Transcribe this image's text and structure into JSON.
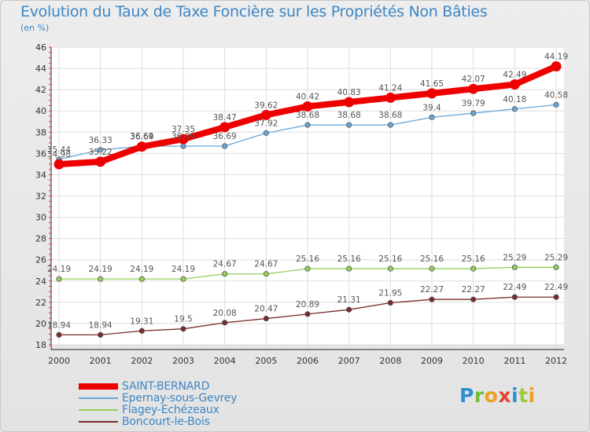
{
  "header": {
    "title": "Evolution du Taux de Taxe Foncière sur les Propriétés Non Bâties",
    "subtitle": "(en %)"
  },
  "logo": {
    "text": "Proxiti"
  },
  "chart_data": {
    "type": "line",
    "x": [
      "2000",
      "2001",
      "2002",
      "2003",
      "2004",
      "2005",
      "2006",
      "2007",
      "2008",
      "2009",
      "2010",
      "2011",
      "2012"
    ],
    "yticks": [
      18,
      20,
      22,
      24,
      26,
      28,
      30,
      32,
      34,
      36,
      38,
      40,
      42,
      44,
      46
    ],
    "ylim": [
      18,
      46
    ],
    "grid": true,
    "legend_position": "bottom-left",
    "series": [
      {
        "name": "SAINT-BERNARD",
        "color": "#ee0000",
        "width": 8,
        "values": [
          34.98,
          35.22,
          36.64,
          37.35,
          38.47,
          39.62,
          40.42,
          40.83,
          41.24,
          41.65,
          42.07,
          42.49,
          44.19
        ],
        "labels": [
          "34.98",
          "35.22",
          "36.64",
          "37.35",
          "38.47",
          "39.62",
          "40.42",
          "40.83",
          "41.24",
          "41.65",
          "42.07",
          "42.49",
          "44.19"
        ]
      },
      {
        "name": "Epernay-sous-Gevrey",
        "color": "#6aa6d6",
        "width": 1.3,
        "values": [
          35.44,
          36.33,
          36.69,
          36.69,
          36.69,
          37.92,
          38.68,
          38.68,
          38.68,
          39.4,
          39.79,
          40.18,
          40.58
        ],
        "labels": [
          "35.44",
          "36.33",
          "36.69",
          "36.69",
          "36.69",
          "37.92",
          "38.68",
          "38.68",
          "38.68",
          "39.4",
          "39.79",
          "40.18",
          "40.58"
        ]
      },
      {
        "name": "Flagey-Echézeaux",
        "color": "#94cf5a",
        "width": 1.3,
        "values": [
          24.19,
          24.19,
          24.19,
          24.19,
          24.67,
          24.67,
          25.16,
          25.16,
          25.16,
          25.16,
          25.16,
          25.29,
          25.29
        ],
        "labels": [
          "24.19",
          "24.19",
          "24.19",
          "24.19",
          "24.67",
          "24.67",
          "25.16",
          "25.16",
          "25.16",
          "25.16",
          "25.16",
          "25.29",
          "25.29"
        ]
      },
      {
        "name": "Boncourt-le-Bois",
        "color": "#7a2a2a",
        "width": 1.3,
        "values": [
          18.94,
          18.94,
          19.31,
          19.5,
          20.08,
          20.47,
          20.89,
          21.31,
          21.95,
          22.27,
          22.27,
          22.49,
          22.49
        ],
        "labels": [
          "18.94",
          "18.94",
          "19.31",
          "19.5",
          "20.08",
          "20.47",
          "20.89",
          "21.31",
          "21.95",
          "22.27",
          "22.27",
          "22.49",
          "22.49"
        ]
      }
    ]
  }
}
